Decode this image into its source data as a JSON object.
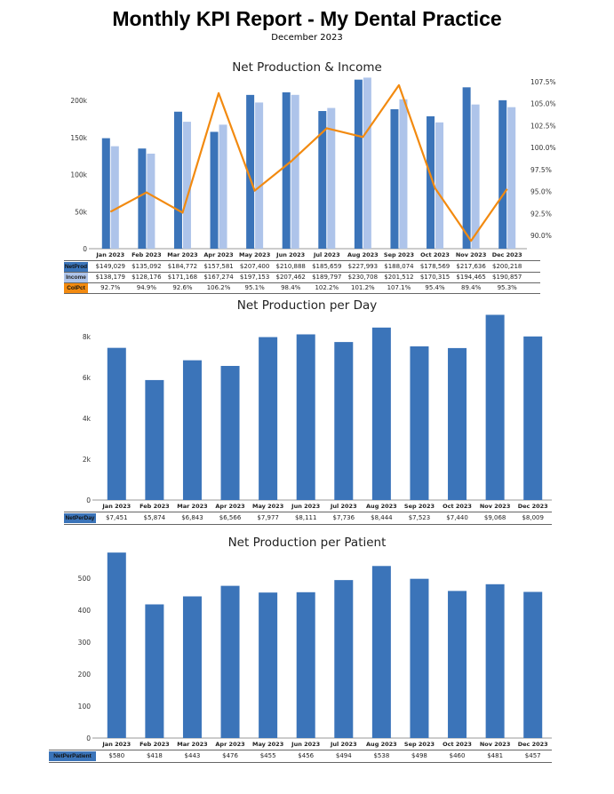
{
  "header": {
    "title": "Monthly KPI Report - My Dental Practice",
    "subtitle": "December 2023"
  },
  "colors": {
    "netprod": "#3b74b9",
    "income": "#aec4ea",
    "colpct": "#f28a10"
  },
  "chart_data": [
    {
      "type": "bar+line",
      "title": "Net Production & Income",
      "categories": [
        "Jan 2023",
        "Feb 2023",
        "Mar 2023",
        "Apr 2023",
        "May 2023",
        "Jun 2023",
        "Jul 2023",
        "Aug 2023",
        "Sep 2023",
        "Oct 2023",
        "Nov 2023",
        "Dec 2023"
      ],
      "series": [
        {
          "name": "NetProd",
          "type": "bar",
          "axis": "left",
          "values": [
            149029,
            135092,
            184772,
            157581,
            207400,
            210888,
            185659,
            227993,
            188074,
            178569,
            217636,
            200218
          ],
          "labels": [
            "$149,029",
            "$135,092",
            "$184,772",
            "$157,581",
            "$207,400",
            "$210,888",
            "$185,659",
            "$227,993",
            "$188,074",
            "$178,569",
            "$217,636",
            "$200,218"
          ]
        },
        {
          "name": "Income",
          "type": "bar",
          "axis": "left",
          "values": [
            138179,
            128176,
            171168,
            167274,
            197153,
            207462,
            189797,
            230708,
            201512,
            170315,
            194465,
            190857
          ],
          "labels": [
            "$138,179",
            "$128,176",
            "$171,168",
            "$167,274",
            "$197,153",
            "$207,462",
            "$189,797",
            "$230,708",
            "$201,512",
            "$170,315",
            "$194,465",
            "$190,857"
          ]
        },
        {
          "name": "ColPct",
          "type": "line",
          "axis": "right",
          "values": [
            92.7,
            94.9,
            92.6,
            106.2,
            95.1,
            98.4,
            102.2,
            101.2,
            107.1,
            95.4,
            89.4,
            95.3
          ],
          "labels": [
            "92.7%",
            "94.9%",
            "92.6%",
            "106.2%",
            "95.1%",
            "98.4%",
            "102.2%",
            "101.2%",
            "107.1%",
            "95.4%",
            "89.4%",
            "95.3%"
          ]
        }
      ],
      "ylim": [
        0,
        230000
      ],
      "yticks": [
        0,
        50000,
        100000,
        150000,
        200000
      ],
      "ytick_labels": [
        "0",
        "50k",
        "100k",
        "150k",
        "200k"
      ],
      "y2lim": [
        88.5,
        107.9
      ],
      "y2ticks": [
        90,
        92.5,
        95,
        97.5,
        100,
        102.5,
        105,
        107.5
      ],
      "y2tick_labels": [
        "90.0%",
        "92.5%",
        "95.0%",
        "97.5%",
        "100.0%",
        "102.5%",
        "105.0%",
        "107.5%"
      ],
      "grid": false,
      "legend": "table-below"
    },
    {
      "type": "bar",
      "title": "Net Production per Day",
      "categories": [
        "Jan 2023",
        "Feb 2023",
        "Mar 2023",
        "Apr 2023",
        "May 2023",
        "Jun 2023",
        "Jul 2023",
        "Aug 2023",
        "Sep 2023",
        "Oct 2023",
        "Nov 2023",
        "Dec 2023"
      ],
      "series": [
        {
          "name": "NetPerDay",
          "values": [
            7451,
            5874,
            6843,
            6566,
            7977,
            8111,
            7736,
            8444,
            7523,
            7440,
            9068,
            8009
          ],
          "labels": [
            "$7,451",
            "$5,874",
            "$6,843",
            "$6,566",
            "$7,977",
            "$8,111",
            "$7,736",
            "$8,444",
            "$7,523",
            "$7,440",
            "$9,068",
            "$8,009"
          ]
        }
      ],
      "ylim": [
        0,
        9480
      ],
      "yticks": [
        0,
        2000,
        4000,
        6000,
        8000
      ],
      "ytick_labels": [
        "0",
        "2k",
        "4k",
        "6k",
        "8k"
      ],
      "grid": false,
      "legend": "table-below"
    },
    {
      "type": "bar",
      "title": "Net Production per Patient",
      "categories": [
        "Jan 2023",
        "Feb 2023",
        "Mar 2023",
        "Apr 2023",
        "May 2023",
        "Jun 2023",
        "Jul 2023",
        "Aug 2023",
        "Sep 2023",
        "Oct 2023",
        "Nov 2023",
        "Dec 2023"
      ],
      "series": [
        {
          "name": "NetPerPatient",
          "values": [
            580,
            418,
            443,
            476,
            455,
            456,
            494,
            538,
            498,
            460,
            481,
            457
          ],
          "labels": [
            "$580",
            "$418",
            "$443",
            "$476",
            "$455",
            "$456",
            "$494",
            "$538",
            "$498",
            "$460",
            "$481",
            "$457"
          ]
        }
      ],
      "ylim": [
        0,
        586
      ],
      "yticks": [
        0,
        100,
        200,
        300,
        400,
        500
      ],
      "ytick_labels": [
        "0",
        "100",
        "200",
        "300",
        "400",
        "500"
      ],
      "grid": false,
      "legend": "table-below"
    }
  ]
}
